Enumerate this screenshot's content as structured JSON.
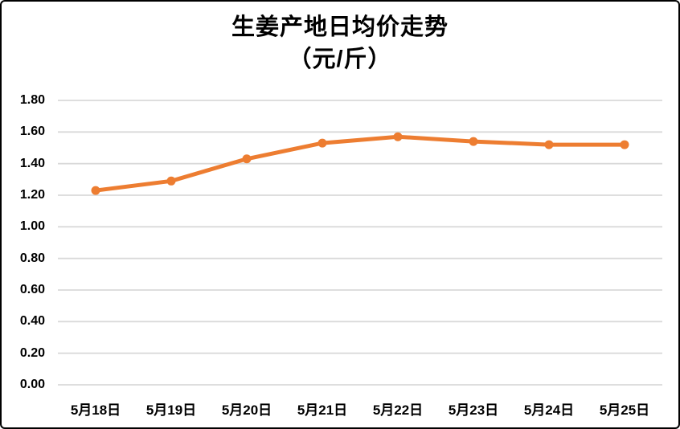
{
  "chart_data": {
    "type": "line",
    "title": "生姜产地日均价走势",
    "subtitle": "（元/斤）",
    "categories": [
      "5月18日",
      "5月19日",
      "5月20日",
      "5月21日",
      "5月22日",
      "5月23日",
      "5月24日",
      "5月25日"
    ],
    "values": [
      1.23,
      1.29,
      1.43,
      1.53,
      1.57,
      1.54,
      1.52,
      1.52
    ],
    "y_ticks": [
      "0.00",
      "0.20",
      "0.40",
      "0.60",
      "0.80",
      "1.00",
      "1.20",
      "1.40",
      "1.60",
      "1.80"
    ],
    "ylim": [
      0,
      1.8
    ],
    "xlabel": "",
    "ylabel": "",
    "grid": true,
    "legend": "none",
    "line_color": "#ED7D31",
    "marker_color": "#ED7D31",
    "gridline_color": "#D9D9D9",
    "text_color": "#000000",
    "background_color": "#FFFFFF",
    "border_color": "#000000"
  }
}
